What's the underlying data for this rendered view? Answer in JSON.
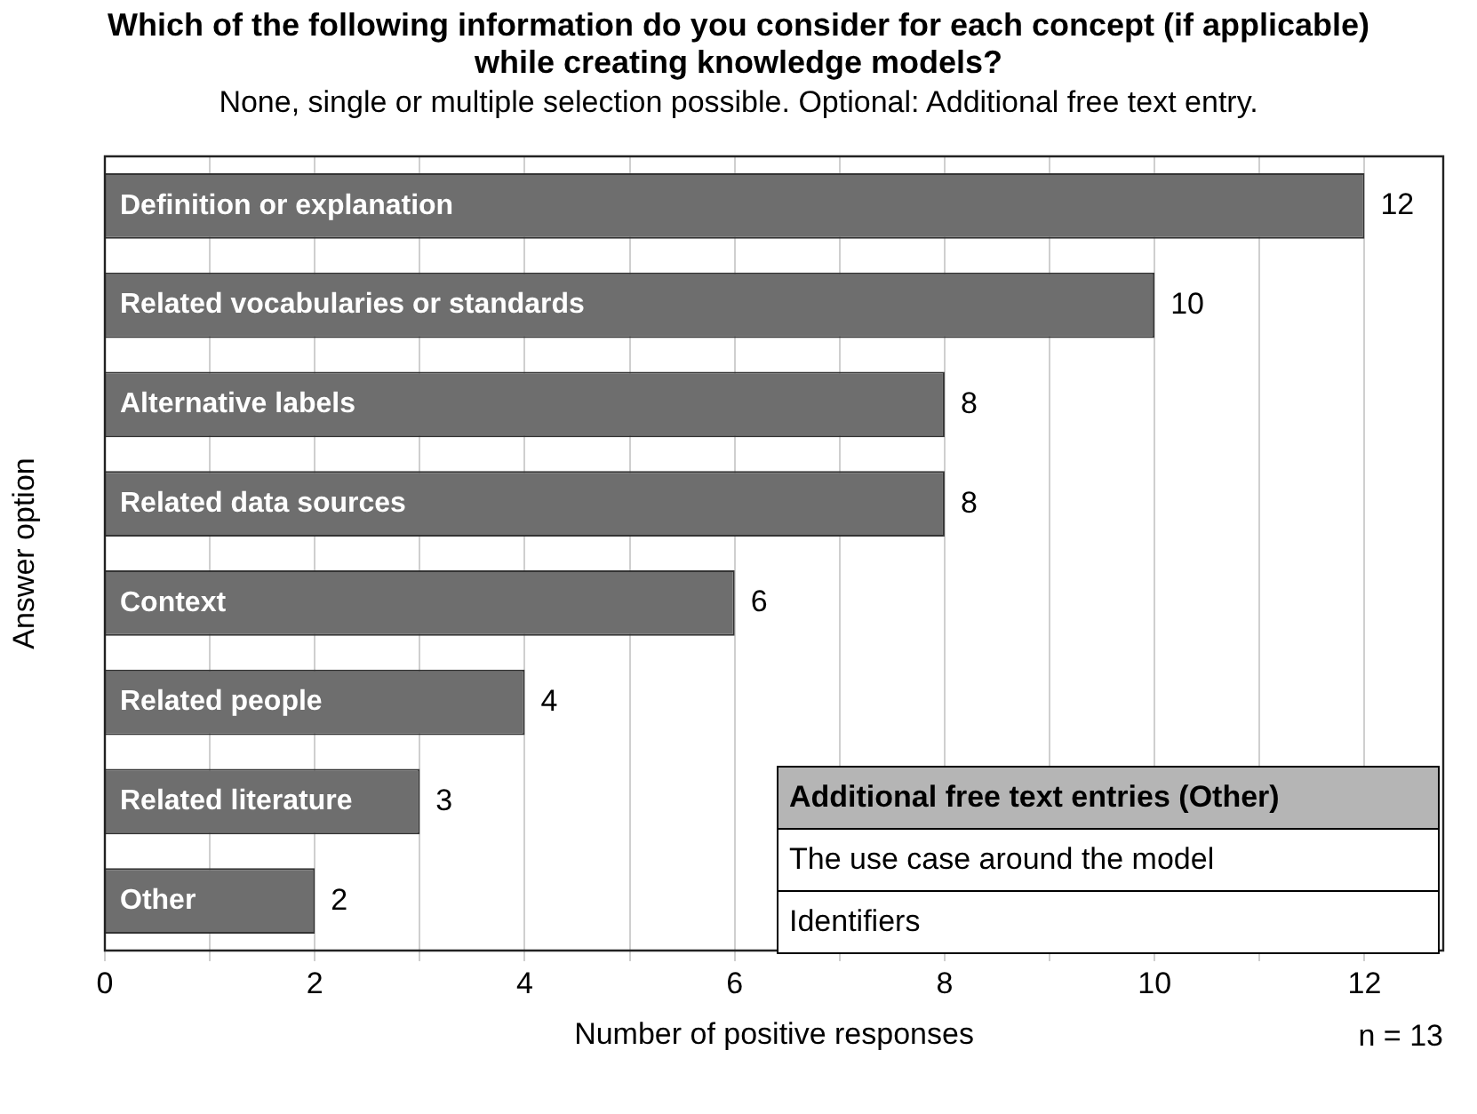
{
  "chart_data": {
    "type": "bar",
    "orientation": "horizontal",
    "title": "Which of the following information do you consider for each concept (if applicable) while creating knowledge models?",
    "subtitle": "None, single or multiple selection possible. Optional: Additional free text entry.",
    "xlabel": "Number of positive responses",
    "ylabel": "Answer option",
    "categories": [
      "Definition or explanation",
      "Related vocabularies or standards",
      "Alternative labels",
      "Related data sources",
      "Context",
      "Related people",
      "Related literature",
      "Other"
    ],
    "values": [
      12,
      10,
      8,
      8,
      6,
      4,
      3,
      2
    ],
    "color": "#6e6e6e",
    "data_labels": true,
    "xlim": [
      0,
      12.75
    ],
    "xticks": [
      0,
      {
        "value": 1,
        "label": null
      },
      2,
      {
        "value": 3,
        "label": null
      },
      4,
      {
        "value": 5,
        "label": null
      },
      6,
      {
        "value": 7,
        "label": null
      },
      8,
      {
        "value": 9,
        "label": null
      },
      10,
      {
        "value": 11,
        "label": null
      },
      12
    ],
    "grid": "x",
    "legend": false,
    "annotations": [
      "n = 13",
      "Additional free text entries (Other)",
      "The use case around the model",
      "Identifiers"
    ]
  }
}
